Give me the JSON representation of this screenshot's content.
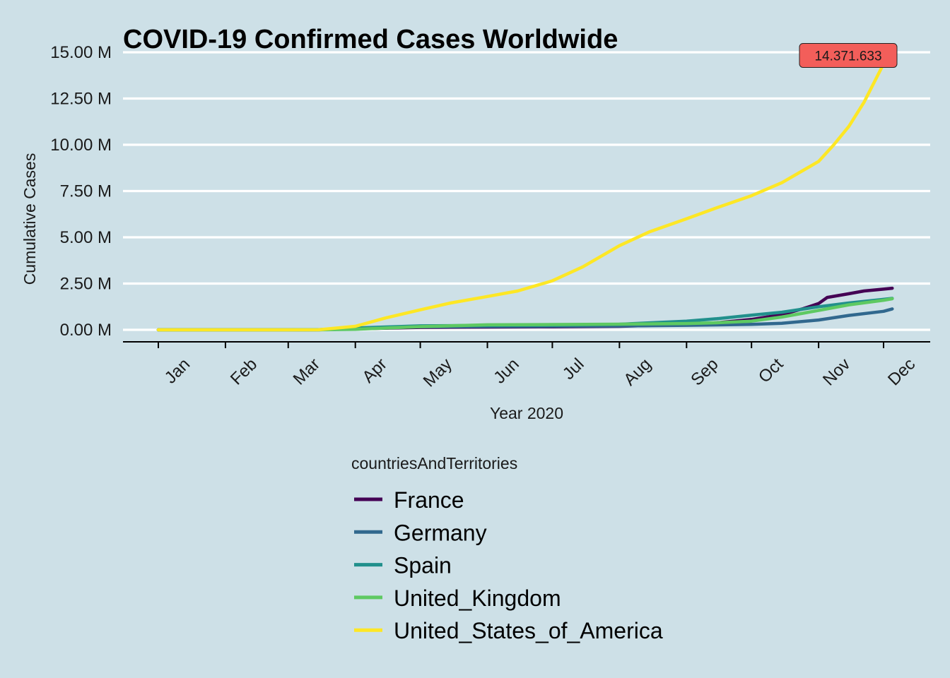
{
  "chart_data": {
    "type": "line",
    "title": "COVID-19 Confirmed Cases Worldwide",
    "xlabel": "Year 2020",
    "ylabel": "Cumulative Cases",
    "ylim": [
      0,
      15000000
    ],
    "xlim": [
      "2019-12-17",
      "2020-12-31"
    ],
    "y_ticks": [
      {
        "value": 0,
        "label": "0.00 M"
      },
      {
        "value": 2500000,
        "label": "2.50 M"
      },
      {
        "value": 5000000,
        "label": "5.00 M"
      },
      {
        "value": 7500000,
        "label": "7.50 M"
      },
      {
        "value": 10000000,
        "label": "10.00 M"
      },
      {
        "value": 12500000,
        "label": "12.50 M"
      },
      {
        "value": 15000000,
        "label": "15.00 M"
      }
    ],
    "x_ticks": [
      {
        "date": "2020-01-01",
        "label": "Jan"
      },
      {
        "date": "2020-02-01",
        "label": "Feb"
      },
      {
        "date": "2020-03-01",
        "label": "Mar"
      },
      {
        "date": "2020-04-01",
        "label": "Apr"
      },
      {
        "date": "2020-05-01",
        "label": "May"
      },
      {
        "date": "2020-06-01",
        "label": "Jun"
      },
      {
        "date": "2020-07-01",
        "label": "Jul"
      },
      {
        "date": "2020-08-01",
        "label": "Aug"
      },
      {
        "date": "2020-09-01",
        "label": "Sep"
      },
      {
        "date": "2020-10-01",
        "label": "Oct"
      },
      {
        "date": "2020-11-01",
        "label": "Nov"
      },
      {
        "date": "2020-12-01",
        "label": "Dec"
      }
    ],
    "grid": "horizontal",
    "legend": {
      "title": "countriesAndTerritories",
      "position": "bottom"
    },
    "annotation": {
      "date": "2020-12-01",
      "value": 14371633,
      "label": "14.371.633",
      "fill": "#f35e5a"
    },
    "series": [
      {
        "name": "France",
        "color": "#440154",
        "points": [
          {
            "date": "2020-01-01",
            "value": 0
          },
          {
            "date": "2020-02-01",
            "value": 0
          },
          {
            "date": "2020-03-01",
            "value": 100
          },
          {
            "date": "2020-03-15",
            "value": 5000
          },
          {
            "date": "2020-04-01",
            "value": 52000
          },
          {
            "date": "2020-05-01",
            "value": 130000
          },
          {
            "date": "2020-06-01",
            "value": 150000
          },
          {
            "date": "2020-07-01",
            "value": 165000
          },
          {
            "date": "2020-08-01",
            "value": 190000
          },
          {
            "date": "2020-09-01",
            "value": 290000
          },
          {
            "date": "2020-09-15",
            "value": 380000
          },
          {
            "date": "2020-10-01",
            "value": 560000
          },
          {
            "date": "2020-10-15",
            "value": 820000
          },
          {
            "date": "2020-10-25",
            "value": 1150000
          },
          {
            "date": "2020-11-01",
            "value": 1420000
          },
          {
            "date": "2020-11-05",
            "value": 1750000
          },
          {
            "date": "2020-11-15",
            "value": 1950000
          },
          {
            "date": "2020-11-22",
            "value": 2100000
          },
          {
            "date": "2020-12-01",
            "value": 2200000
          },
          {
            "date": "2020-12-05",
            "value": 2250000
          }
        ]
      },
      {
        "name": "Germany",
        "color": "#31688e",
        "points": [
          {
            "date": "2020-01-01",
            "value": 0
          },
          {
            "date": "2020-02-01",
            "value": 0
          },
          {
            "date": "2020-03-01",
            "value": 100
          },
          {
            "date": "2020-03-15",
            "value": 5000
          },
          {
            "date": "2020-04-01",
            "value": 70000
          },
          {
            "date": "2020-05-01",
            "value": 160000
          },
          {
            "date": "2020-06-01",
            "value": 180000
          },
          {
            "date": "2020-07-01",
            "value": 195000
          },
          {
            "date": "2020-08-01",
            "value": 210000
          },
          {
            "date": "2020-09-01",
            "value": 245000
          },
          {
            "date": "2020-10-01",
            "value": 295000
          },
          {
            "date": "2020-10-15",
            "value": 350000
          },
          {
            "date": "2020-11-01",
            "value": 530000
          },
          {
            "date": "2020-11-15",
            "value": 780000
          },
          {
            "date": "2020-12-01",
            "value": 1000000
          },
          {
            "date": "2020-12-05",
            "value": 1130000
          }
        ]
      },
      {
        "name": "Spain",
        "color": "#21908c",
        "points": [
          {
            "date": "2020-01-01",
            "value": 0
          },
          {
            "date": "2020-02-01",
            "value": 0
          },
          {
            "date": "2020-03-01",
            "value": 100
          },
          {
            "date": "2020-03-15",
            "value": 8000
          },
          {
            "date": "2020-04-01",
            "value": 100000
          },
          {
            "date": "2020-05-01",
            "value": 215000
          },
          {
            "date": "2020-06-01",
            "value": 240000
          },
          {
            "date": "2020-07-01",
            "value": 250000
          },
          {
            "date": "2020-08-01",
            "value": 300000
          },
          {
            "date": "2020-09-01",
            "value": 470000
          },
          {
            "date": "2020-09-15",
            "value": 600000
          },
          {
            "date": "2020-10-01",
            "value": 790000
          },
          {
            "date": "2020-10-15",
            "value": 950000
          },
          {
            "date": "2020-11-01",
            "value": 1250000
          },
          {
            "date": "2020-11-15",
            "value": 1450000
          },
          {
            "date": "2020-12-01",
            "value": 1650000
          },
          {
            "date": "2020-12-05",
            "value": 1700000
          }
        ]
      },
      {
        "name": "United_Kingdom",
        "color": "#5ec962",
        "points": [
          {
            "date": "2020-01-01",
            "value": 0
          },
          {
            "date": "2020-02-01",
            "value": 0
          },
          {
            "date": "2020-03-01",
            "value": 100
          },
          {
            "date": "2020-03-15",
            "value": 1000
          },
          {
            "date": "2020-04-01",
            "value": 30000
          },
          {
            "date": "2020-05-01",
            "value": 170000
          },
          {
            "date": "2020-06-01",
            "value": 270000
          },
          {
            "date": "2020-07-01",
            "value": 285000
          },
          {
            "date": "2020-08-01",
            "value": 305000
          },
          {
            "date": "2020-09-01",
            "value": 340000
          },
          {
            "date": "2020-09-15",
            "value": 380000
          },
          {
            "date": "2020-10-01",
            "value": 470000
          },
          {
            "date": "2020-10-15",
            "value": 690000
          },
          {
            "date": "2020-11-01",
            "value": 1050000
          },
          {
            "date": "2020-11-15",
            "value": 1350000
          },
          {
            "date": "2020-12-01",
            "value": 1600000
          },
          {
            "date": "2020-12-05",
            "value": 1680000
          }
        ]
      },
      {
        "name": "United_States_of_America",
        "color": "#fde725",
        "points": [
          {
            "date": "2020-01-01",
            "value": 0
          },
          {
            "date": "2020-02-01",
            "value": 10
          },
          {
            "date": "2020-03-01",
            "value": 100
          },
          {
            "date": "2020-03-15",
            "value": 3500
          },
          {
            "date": "2020-04-01",
            "value": 190000
          },
          {
            "date": "2020-04-15",
            "value": 640000
          },
          {
            "date": "2020-05-01",
            "value": 1080000
          },
          {
            "date": "2020-05-15",
            "value": 1450000
          },
          {
            "date": "2020-06-01",
            "value": 1800000
          },
          {
            "date": "2020-06-15",
            "value": 2100000
          },
          {
            "date": "2020-07-01",
            "value": 2650000
          },
          {
            "date": "2020-07-15",
            "value": 3400000
          },
          {
            "date": "2020-08-01",
            "value": 4550000
          },
          {
            "date": "2020-08-15",
            "value": 5300000
          },
          {
            "date": "2020-09-01",
            "value": 6000000
          },
          {
            "date": "2020-09-15",
            "value": 6600000
          },
          {
            "date": "2020-10-01",
            "value": 7250000
          },
          {
            "date": "2020-10-15",
            "value": 7950000
          },
          {
            "date": "2020-11-01",
            "value": 9100000
          },
          {
            "date": "2020-11-08",
            "value": 10000000
          },
          {
            "date": "2020-11-15",
            "value": 11000000
          },
          {
            "date": "2020-11-22",
            "value": 12300000
          },
          {
            "date": "2020-12-01",
            "value": 14371633
          }
        ]
      }
    ]
  }
}
